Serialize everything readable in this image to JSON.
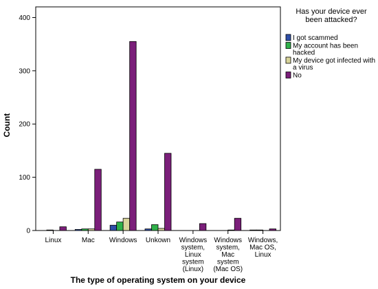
{
  "chart_data": {
    "type": "bar",
    "xlabel": "The type of operating system on your device",
    "ylabel": "Count",
    "ylim": [
      0,
      420
    ],
    "yticks": [
      0,
      100,
      200,
      300,
      400
    ],
    "grid": false,
    "legend": {
      "title_lines": [
        "Has your device ever",
        "been attacked?"
      ],
      "placement": "right"
    },
    "categories": [
      [
        "Linux"
      ],
      [
        "Mac"
      ],
      [
        "Windows"
      ],
      [
        "Unkown"
      ],
      [
        "Windows",
        "system,",
        "Linux",
        "system",
        "(Linux)"
      ],
      [
        "Windows",
        "system,",
        "Mac",
        "system",
        "(Mac OS)"
      ],
      [
        "Windows,",
        "Mac OS,",
        "Linux"
      ]
    ],
    "series": [
      {
        "name_lines": [
          "I got scammed"
        ],
        "color": "#2f4fa8",
        "values": [
          0,
          2,
          10,
          3,
          0,
          0,
          1
        ]
      },
      {
        "name_lines": [
          "My account has been",
          "hacked"
        ],
        "color": "#2fb14a",
        "values": [
          1,
          3,
          16,
          11,
          0,
          0,
          1
        ]
      },
      {
        "name_lines": [
          "My device got infected with",
          "a virus"
        ],
        "color": "#d8d49a",
        "values": [
          0,
          3,
          23,
          4,
          0,
          1,
          0
        ]
      },
      {
        "name_lines": [
          "No"
        ],
        "color": "#7b1f7a",
        "values": [
          7,
          115,
          355,
          145,
          13,
          23,
          3
        ]
      }
    ]
  }
}
